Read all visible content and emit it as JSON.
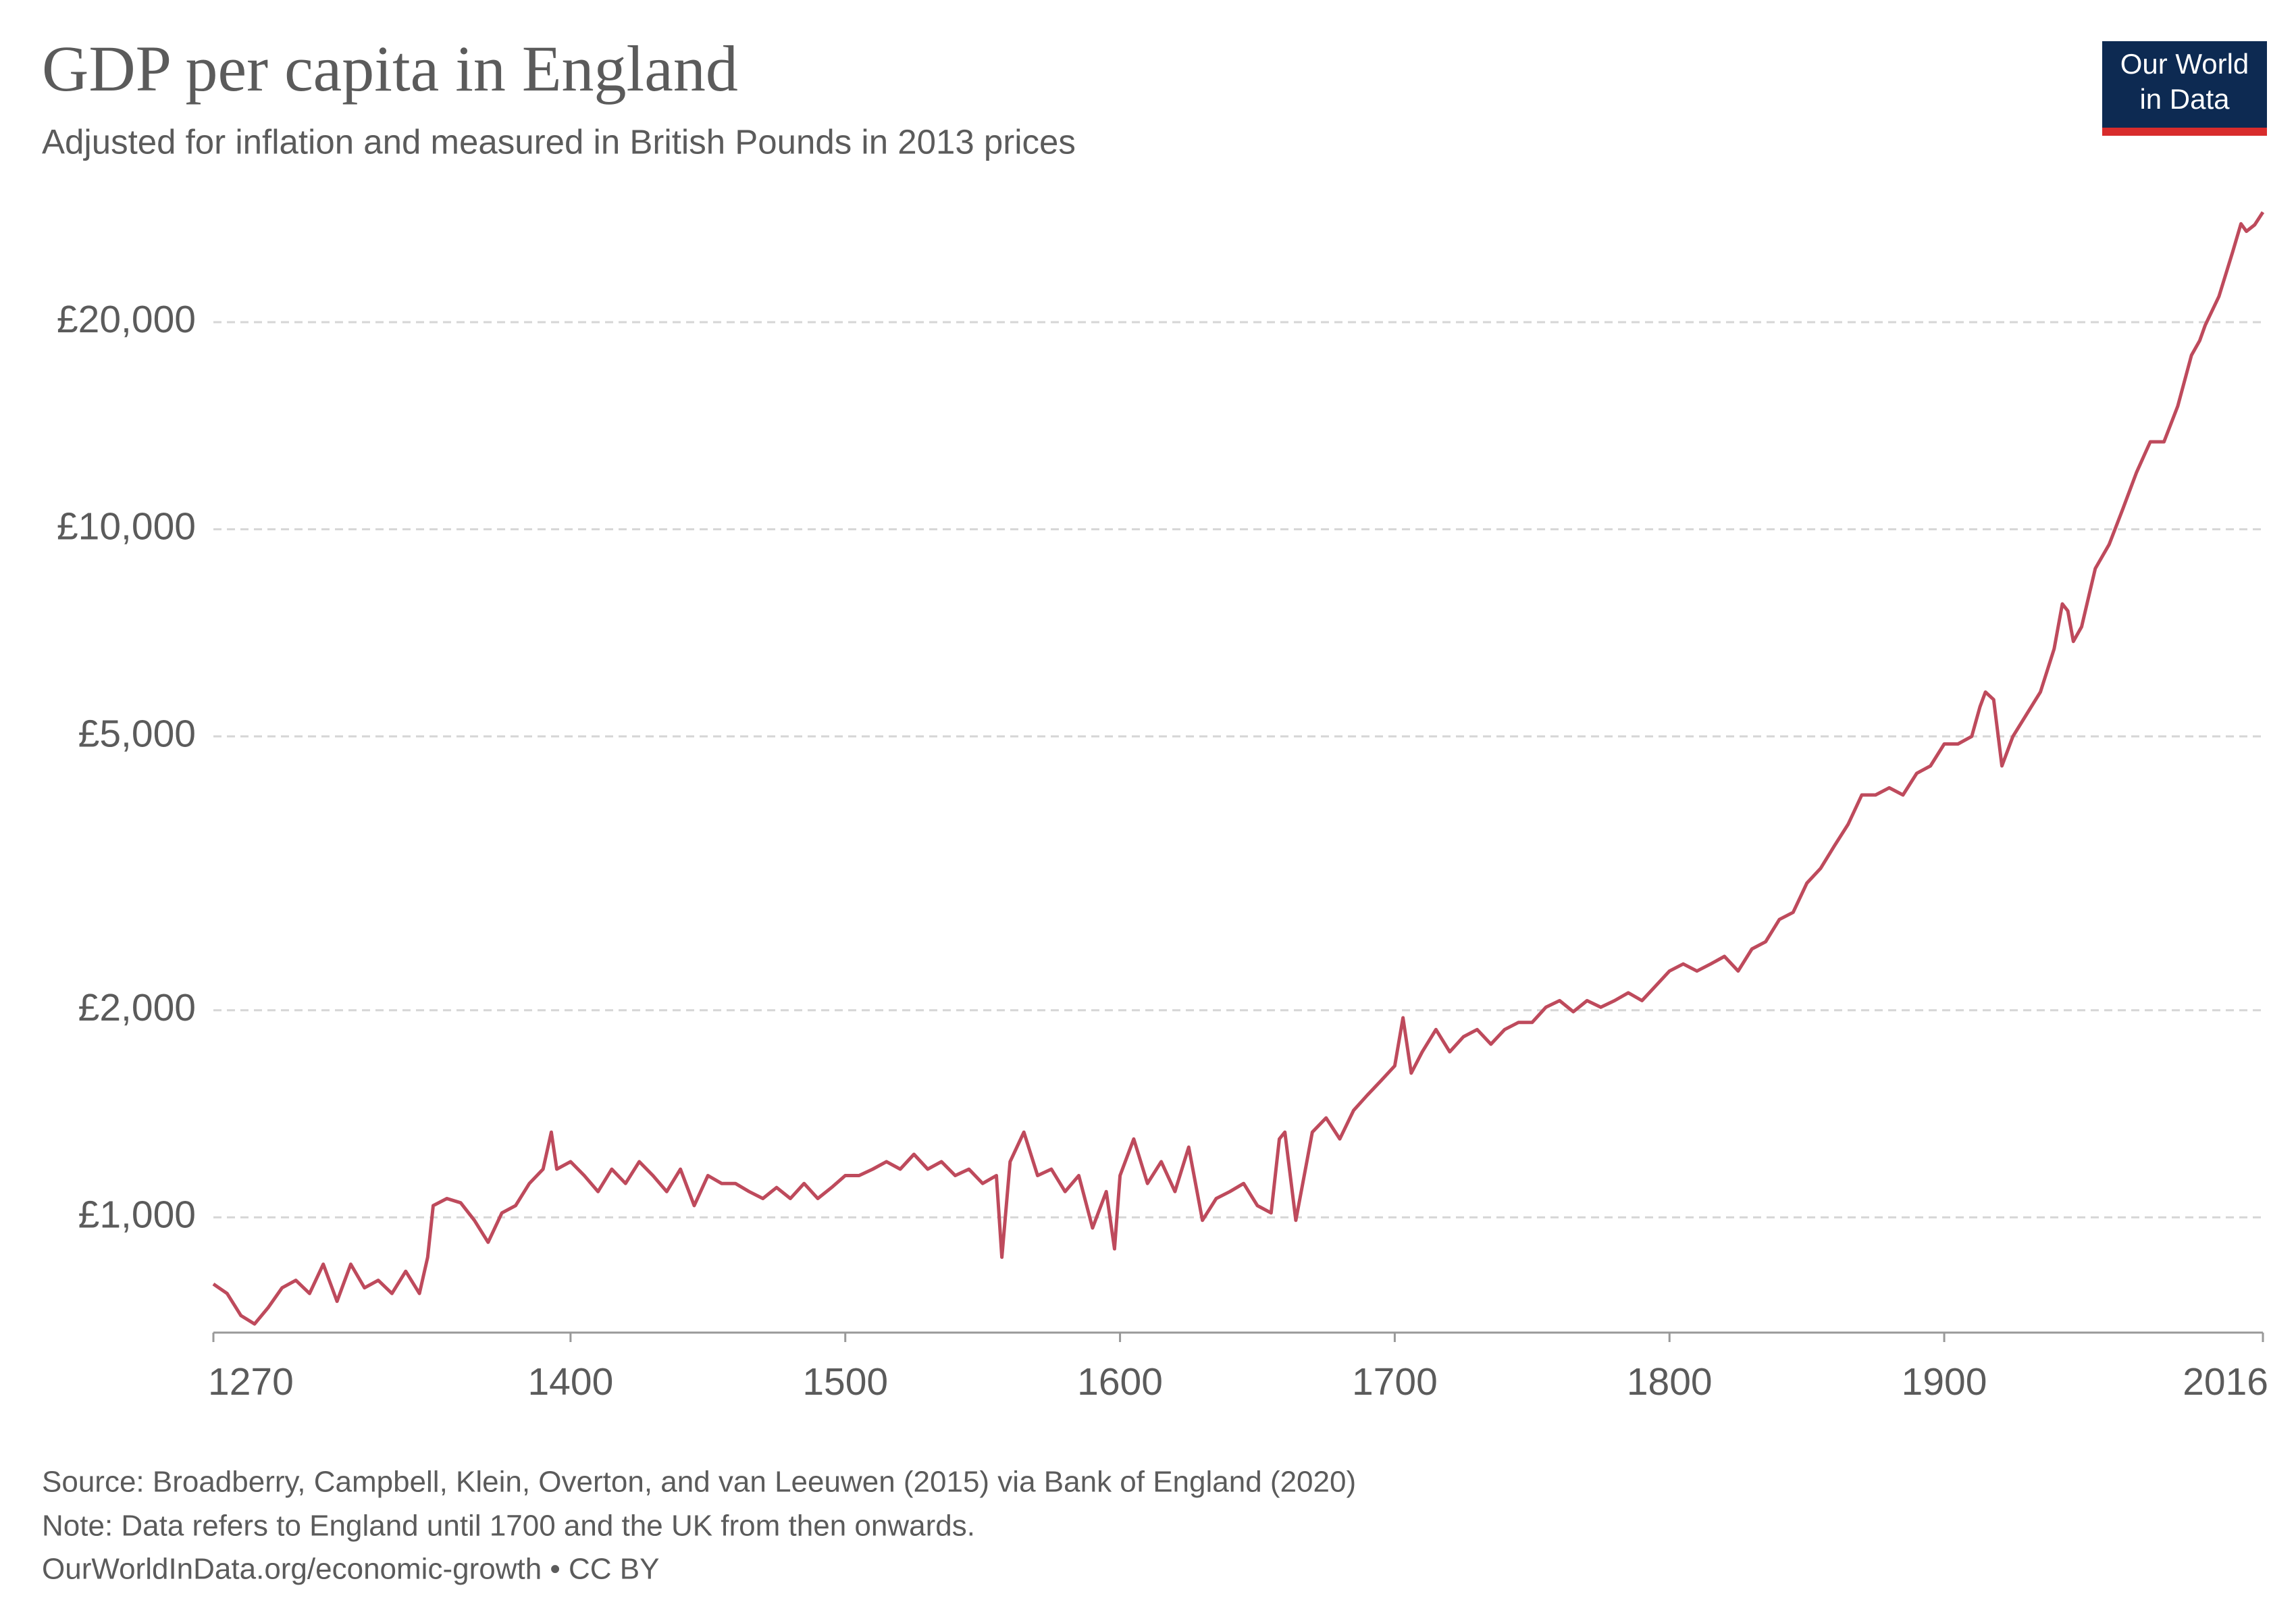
{
  "chart_data": {
    "type": "line",
    "title": "GDP per capita in England",
    "subtitle": "Adjusted for inflation and measured in British Pounds in 2013 prices",
    "logo": {
      "line1": "Our World",
      "line2": "in Data"
    },
    "source": "Source: Broadberry, Campbell, Klein, Overton, and van Leeuwen (2015) via Bank of England (2020)",
    "note": "Note: Data refers to England until 1700 and the UK from then onwards.",
    "url": "OurWorldInData.org/economic-growth • CC BY",
    "color": "#be4a5c",
    "log_y": true,
    "grid": true,
    "xlim": [
      1270,
      2016
    ],
    "xticks": [
      1270,
      1400,
      1500,
      1600,
      1700,
      1800,
      1900,
      2016
    ],
    "ylim": [
      680,
      29500
    ],
    "yticks": [
      {
        "value": 1000,
        "label": "£1,000"
      },
      {
        "value": 2000,
        "label": "£2,000"
      },
      {
        "value": 5000,
        "label": "£5,000"
      },
      {
        "value": 10000,
        "label": "£10,000"
      },
      {
        "value": 20000,
        "label": "£20,000"
      }
    ],
    "x": [
      1270,
      1275,
      1280,
      1285,
      1290,
      1295,
      1300,
      1305,
      1310,
      1315,
      1320,
      1325,
      1330,
      1335,
      1340,
      1345,
      1348,
      1350,
      1355,
      1360,
      1365,
      1370,
      1375,
      1380,
      1385,
      1390,
      1393,
      1395,
      1400,
      1405,
      1410,
      1415,
      1420,
      1425,
      1430,
      1435,
      1440,
      1445,
      1450,
      1455,
      1460,
      1465,
      1470,
      1475,
      1480,
      1485,
      1490,
      1495,
      1500,
      1505,
      1510,
      1515,
      1520,
      1525,
      1530,
      1535,
      1540,
      1545,
      1550,
      1555,
      1557,
      1560,
      1565,
      1570,
      1575,
      1580,
      1585,
      1590,
      1595,
      1598,
      1600,
      1605,
      1610,
      1615,
      1620,
      1625,
      1630,
      1635,
      1640,
      1645,
      1650,
      1655,
      1658,
      1660,
      1664,
      1668,
      1670,
      1675,
      1680,
      1685,
      1690,
      1695,
      1700,
      1703,
      1706,
      1710,
      1715,
      1720,
      1725,
      1730,
      1735,
      1740,
      1745,
      1750,
      1755,
      1760,
      1765,
      1770,
      1775,
      1780,
      1785,
      1790,
      1795,
      1800,
      1805,
      1810,
      1815,
      1820,
      1825,
      1830,
      1835,
      1840,
      1845,
      1850,
      1855,
      1860,
      1865,
      1870,
      1875,
      1880,
      1885,
      1890,
      1895,
      1900,
      1905,
      1910,
      1913,
      1915,
      1918,
      1921,
      1925,
      1930,
      1935,
      1940,
      1943,
      1945,
      1947,
      1950,
      1955,
      1960,
      1965,
      1970,
      1975,
      1980,
      1985,
      1990,
      1993,
      1995,
      2000,
      2005,
      2008,
      2010,
      2013,
      2016
    ],
    "values": [
      800,
      775,
      720,
      700,
      740,
      790,
      810,
      775,
      855,
      755,
      855,
      790,
      810,
      775,
      835,
      775,
      875,
      1040,
      1065,
      1050,
      990,
      920,
      1015,
      1040,
      1120,
      1175,
      1330,
      1175,
      1205,
      1150,
      1090,
      1175,
      1120,
      1205,
      1150,
      1090,
      1175,
      1040,
      1150,
      1120,
      1120,
      1090,
      1065,
      1105,
      1065,
      1120,
      1065,
      1105,
      1150,
      1150,
      1175,
      1205,
      1175,
      1235,
      1175,
      1205,
      1150,
      1175,
      1120,
      1150,
      875,
      1205,
      1330,
      1150,
      1175,
      1090,
      1150,
      965,
      1090,
      900,
      1150,
      1300,
      1120,
      1205,
      1090,
      1265,
      990,
      1065,
      1090,
      1120,
      1040,
      1015,
      1300,
      1330,
      990,
      1205,
      1330,
      1395,
      1300,
      1430,
      1505,
      1580,
      1660,
      1950,
      1620,
      1740,
      1875,
      1740,
      1830,
      1875,
      1785,
      1875,
      1920,
      1920,
      2020,
      2065,
      1990,
      2065,
      2020,
      2065,
      2120,
      2065,
      2170,
      2280,
      2335,
      2280,
      2335,
      2395,
      2280,
      2455,
      2515,
      2710,
      2775,
      3060,
      3215,
      3465,
      3725,
      4110,
      4110,
      4210,
      4110,
      4420,
      4530,
      4875,
      4875,
      5000,
      5520,
      5800,
      5655,
      4530,
      5000,
      5385,
      5800,
      6700,
      7790,
      7610,
      6870,
      7215,
      8770,
      9500,
      10700,
      12100,
      13400,
      13400,
      15100,
      17900,
      18800,
      19800,
      21800,
      25300,
      27800,
      27100,
      27700,
      28900
    ]
  }
}
